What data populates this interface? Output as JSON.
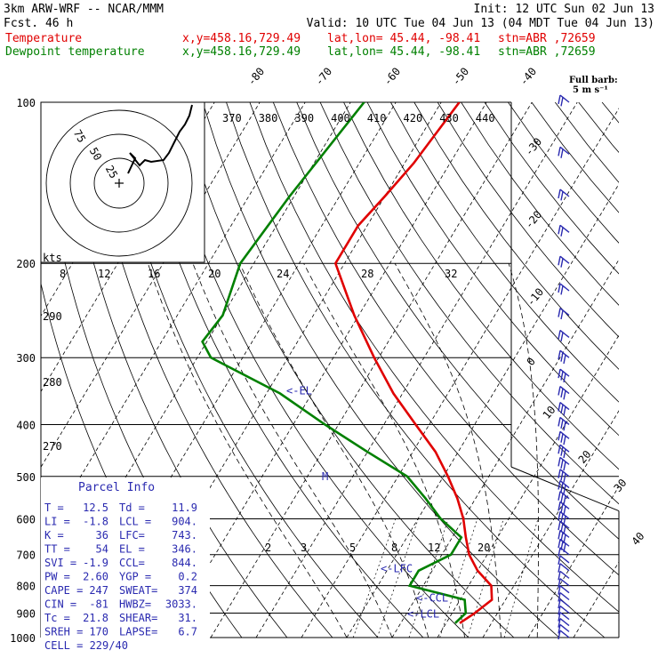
{
  "header": {
    "model": "3km ARW-WRF -- NCAR/MMM",
    "init": "Init: 12 UTC Sun 02 Jun 13",
    "fcst": "Fcst.   46 h",
    "valid": "Valid: 10 UTC Tue 04 Jun 13 (04 MDT Tue 04 Jun 13)",
    "temp_label": "Temperature",
    "dew_label": "Dewpoint temperature",
    "xy": "x,y=458.16,729.49",
    "latlon": "lat,lon= 45.44, -98.41",
    "stn": "stn=ABR ,72659",
    "barb_note_1": "Full barb:",
    "barb_note_2": "5 m s⁻¹"
  },
  "colors": {
    "temperature": "#e00000",
    "dewpoint": "#008000",
    "annotation": "#2a2ab0",
    "isobar": "#000000",
    "isotherm": "#000000",
    "hodograph": "#000000"
  },
  "chart_data": {
    "type": "line",
    "title": "",
    "xlabel": "",
    "ylabel": "",
    "y_axis_pressure_hPa": [
      100,
      200,
      300,
      400,
      500,
      600,
      700,
      800,
      900,
      1000
    ],
    "y_scale": "log",
    "isotherm_labels_C": [
      -80,
      -70,
      -60,
      -50,
      -40,
      -30,
      -20,
      -10,
      0,
      10,
      20,
      30,
      40
    ],
    "theta_labels_K": [
      370,
      380,
      390,
      400,
      410,
      420,
      430,
      440
    ],
    "mixing_ratio_top_labels": [
      8,
      12,
      16,
      20,
      24,
      28,
      32
    ],
    "mixing_ratio_low_labels": [
      2,
      3,
      5,
      8,
      12,
      20
    ],
    "adiabat_side_labels": [
      290,
      280,
      270
    ],
    "series": [
      {
        "name": "Temperature",
        "color": "#e00000",
        "points": [
          {
            "p": 100,
            "t": -56
          },
          {
            "p": 130,
            "t": -58
          },
          {
            "p": 150,
            "t": -60
          },
          {
            "p": 170,
            "t": -62
          },
          {
            "p": 200,
            "t": -62
          },
          {
            "p": 250,
            "t": -51
          },
          {
            "p": 300,
            "t": -41
          },
          {
            "p": 350,
            "t": -32
          },
          {
            "p": 400,
            "t": -23
          },
          {
            "p": 450,
            "t": -15
          },
          {
            "p": 500,
            "t": -9
          },
          {
            "p": 550,
            "t": -4
          },
          {
            "p": 600,
            "t": 0
          },
          {
            "p": 650,
            "t": 3
          },
          {
            "p": 700,
            "t": 6
          },
          {
            "p": 750,
            "t": 10
          },
          {
            "p": 800,
            "t": 15
          },
          {
            "p": 850,
            "t": 17
          },
          {
            "p": 900,
            "t": 15
          },
          {
            "p": 940,
            "t": 13
          }
        ]
      },
      {
        "name": "Dewpoint temperature",
        "color": "#008000",
        "points": [
          {
            "p": 100,
            "t": -77
          },
          {
            "p": 150,
            "t": -81
          },
          {
            "p": 200,
            "t": -83
          },
          {
            "p": 250,
            "t": -80
          },
          {
            "p": 280,
            "t": -81
          },
          {
            "p": 300,
            "t": -77
          },
          {
            "p": 350,
            "t": -57
          },
          {
            "p": 400,
            "t": -43
          },
          {
            "p": 450,
            "t": -30
          },
          {
            "p": 500,
            "t": -18
          },
          {
            "p": 550,
            "t": -11
          },
          {
            "p": 600,
            "t": -5
          },
          {
            "p": 650,
            "t": 2
          },
          {
            "p": 700,
            "t": 2
          },
          {
            "p": 750,
            "t": -3
          },
          {
            "p": 800,
            "t": -3
          },
          {
            "p": 850,
            "t": 11
          },
          {
            "p": 900,
            "t": 13
          },
          {
            "p": 940,
            "t": 12
          }
        ]
      }
    ],
    "hodograph_rings_kts": [
      25,
      50,
      75
    ],
    "hodograph_label": "kts",
    "annotations": [
      {
        "text": "<-EL",
        "p": 346
      },
      {
        "text": "M",
        "p": 500
      },
      {
        "text": "<-LFC",
        "p": 743
      },
      {
        "text": "<-CCL",
        "p": 844
      },
      {
        "text": "<-LCL",
        "p": 904
      }
    ],
    "parcel_info": {
      "title": "Parcel Info",
      "rows": [
        [
          "T  =",
          "12.5",
          "Td =",
          "11.9"
        ],
        [
          "LI =",
          "-1.8",
          "LCL =",
          "904."
        ],
        [
          "K  =",
          "36",
          "LFC=",
          "743."
        ],
        [
          "TT =",
          "54",
          "EL =",
          "346."
        ],
        [
          "SVI =",
          "-1.9",
          "CCL=",
          "844."
        ],
        [
          "PW =",
          "2.60",
          "YGP =",
          "0.2"
        ],
        [
          "CAPE =",
          "247",
          "SWEAT=",
          "374"
        ],
        [
          "CIN =",
          "-81",
          "HWBZ=",
          "3033."
        ],
        [
          "Tc =",
          "21.8",
          "SHEAR=",
          "31."
        ],
        [
          "SREH =",
          "170",
          "LAPSE=",
          "6.7"
        ],
        [
          "CELL = 229/40",
          "",
          "",
          ""
        ]
      ]
    }
  }
}
